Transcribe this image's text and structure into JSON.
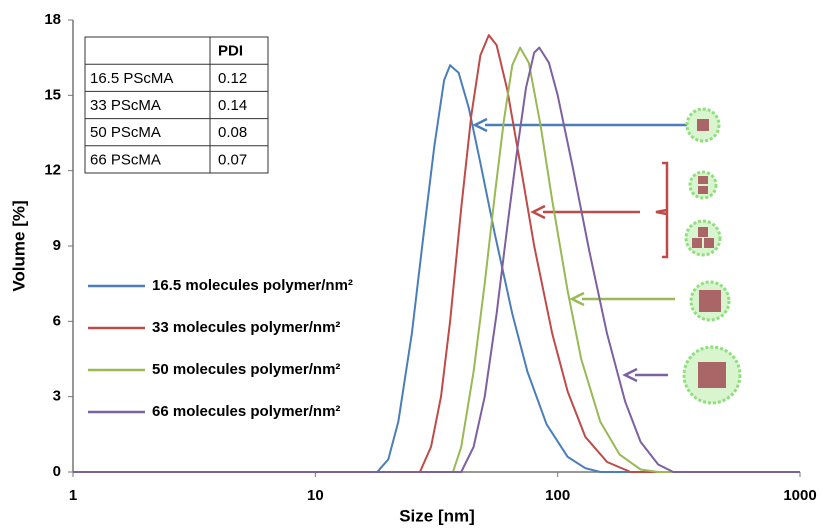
{
  "chart_data": {
    "type": "line",
    "xlabel": "Size [nm]",
    "ylabel": "Volume [%]",
    "xscale": "log",
    "xlim": [
      1,
      1000
    ],
    "xticks": [
      1,
      10,
      100,
      1000
    ],
    "ylim": [
      0,
      18
    ],
    "yticks": [
      0,
      3,
      6,
      9,
      12,
      15,
      18
    ],
    "grid": false,
    "legend": "left",
    "series": [
      {
        "name": "16.5 molecules polymer/nm²",
        "color": "#4a7ebb",
        "x": [
          1,
          18,
          20,
          22,
          25,
          28,
          31,
          34,
          36,
          39,
          43,
          48,
          55,
          65,
          75,
          90,
          110,
          130,
          150,
          1000
        ],
        "values": [
          0,
          0,
          0.5,
          2,
          5.5,
          9.5,
          13,
          15.6,
          16.2,
          15.9,
          14.5,
          12.3,
          9.5,
          6.3,
          4,
          1.9,
          0.6,
          0.15,
          0,
          0
        ]
      },
      {
        "name": "33 molecules polymer/nm²",
        "color": "#be4b48",
        "x": [
          1,
          27,
          30,
          33,
          36,
          40,
          44,
          48,
          52,
          56,
          62,
          70,
          80,
          95,
          110,
          130,
          160,
          200,
          1000
        ],
        "values": [
          0,
          0,
          1,
          3,
          6,
          10.5,
          14.2,
          16.6,
          17.4,
          17,
          15.2,
          12.3,
          9,
          5.5,
          3.2,
          1.4,
          0.4,
          0,
          0
        ]
      },
      {
        "name": "50 molecules polymer/nm²",
        "color": "#98b954",
        "x": [
          1,
          37,
          40,
          45,
          50,
          55,
          60,
          65,
          70,
          76,
          85,
          95,
          110,
          125,
          150,
          180,
          220,
          260,
          1000
        ],
        "values": [
          0,
          0,
          1,
          4,
          7.5,
          11,
          14,
          16.2,
          16.9,
          16.3,
          13.8,
          10.8,
          7.2,
          4.5,
          2,
          0.7,
          0.1,
          0,
          0
        ]
      },
      {
        "name": "66 molecules polymer/nm²",
        "color": "#7d60a0",
        "x": [
          1,
          40,
          45,
          50,
          56,
          62,
          68,
          74,
          80,
          84,
          92,
          100,
          115,
          135,
          160,
          190,
          220,
          260,
          300,
          1000
        ],
        "values": [
          0,
          0,
          1,
          3,
          6.3,
          9.8,
          12.8,
          15.3,
          16.7,
          16.9,
          16.3,
          15,
          12.2,
          8.8,
          5.5,
          2.8,
          1.2,
          0.3,
          0,
          0
        ]
      }
    ],
    "table": {
      "header": "PDI",
      "rows": [
        [
          "16.5 PScMA",
          "0.12"
        ],
        [
          "33 PScMA",
          "0.14"
        ],
        [
          "50 PScMA",
          "0.08"
        ],
        [
          "66 PScMA",
          "0.07"
        ]
      ]
    }
  }
}
